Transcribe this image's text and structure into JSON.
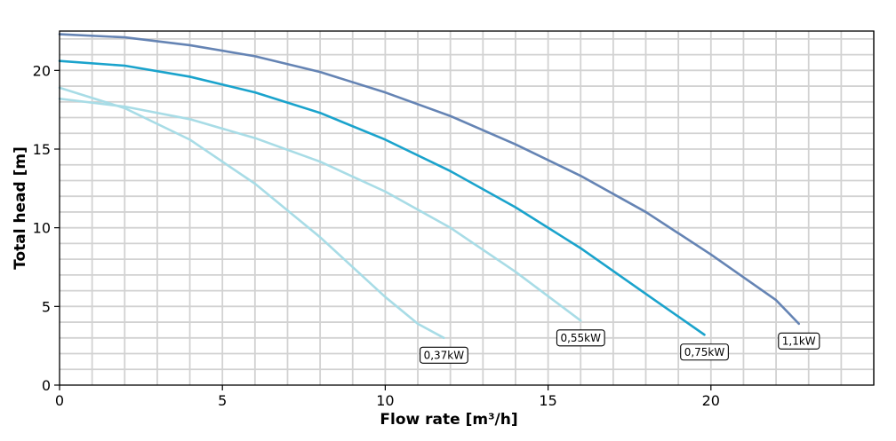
{
  "chart_data": {
    "type": "line",
    "title": "",
    "xlabel": "Flow rate [m³/h]",
    "ylabel": "Total head [m]",
    "xlim": [
      0,
      25
    ],
    "ylim": [
      0,
      22.5
    ],
    "xticks": [
      0,
      5,
      10,
      15,
      20
    ],
    "yticks": [
      0,
      5,
      10,
      15,
      20
    ],
    "x_minor_step": 1,
    "y_minor_step": 1,
    "grid": true,
    "legend": "none",
    "series": [
      {
        "name": "0,37kW",
        "color": "#a8dce6",
        "x": [
          0,
          2,
          4,
          6,
          8,
          10,
          11,
          11.8
        ],
        "y": [
          18.9,
          17.6,
          15.6,
          12.8,
          9.4,
          5.6,
          3.9,
          3.0
        ]
      },
      {
        "name": "0,55kW",
        "color": "#a8dce6",
        "x": [
          0,
          2,
          4,
          6,
          8,
          10,
          12,
          14,
          16
        ],
        "y": [
          18.2,
          17.7,
          16.9,
          15.7,
          14.2,
          12.3,
          10.0,
          7.2,
          4.1
        ]
      },
      {
        "name": "0,75kW",
        "color": "#1aa3cc",
        "x": [
          0,
          2,
          4,
          6,
          8,
          10,
          12,
          14,
          16,
          18,
          19.8
        ],
        "y": [
          20.6,
          20.3,
          19.6,
          18.6,
          17.3,
          15.6,
          13.6,
          11.3,
          8.7,
          5.8,
          3.2
        ]
      },
      {
        "name": "1,1kW",
        "color": "#6584b4",
        "x": [
          0,
          2,
          4,
          6,
          8,
          10,
          12,
          14,
          16,
          18,
          20,
          22,
          22.7
        ],
        "y": [
          22.3,
          22.1,
          21.6,
          20.9,
          19.9,
          18.6,
          17.1,
          15.3,
          13.3,
          11.0,
          8.3,
          5.4,
          3.9
        ]
      }
    ]
  }
}
